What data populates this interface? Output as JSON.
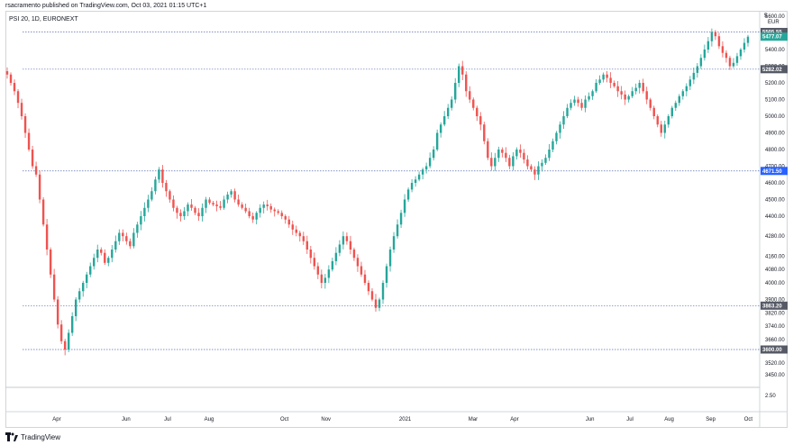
{
  "header": {
    "text": "rsacramento published on TradingView.com, Oct 03, 2021 01:15 UTC+1"
  },
  "symbol": {
    "text": "PSI 20, 1D, EURONEXT"
  },
  "footer": {
    "brand": "TradingView"
  },
  "colors": {
    "up": "#26a69a",
    "down": "#ef5350",
    "line": "#5b6fb0",
    "last": "#26a69a",
    "level_highlight": "#2962ff",
    "level_tag": "#555a66"
  },
  "chart_data": {
    "type": "candlestick",
    "title": "PSI 20, 1D, EURONEXT",
    "currency": "EUR",
    "ylim": [
      3400,
      5600
    ],
    "y_ticks": [
      "5600.00",
      "5400.00",
      "5300.00",
      "5200.00",
      "5100.00",
      "5000.00",
      "4900.00",
      "4800.00",
      "4700.00",
      "4600.00",
      "4500.00",
      "4400.00",
      "4280.00",
      "4160.00",
      "4080.00",
      "4000.00",
      "3900.00",
      "3820.00",
      "3740.00",
      "3660.00",
      "3600.00",
      "3520.00",
      "3450.00"
    ],
    "x_ticks": [
      "Apr",
      "Jun",
      "Jul",
      "Aug",
      "Oct",
      "Nov",
      "2021",
      "Mar",
      "Apr",
      "Jun",
      "Jul",
      "Aug",
      "Sep",
      "Oct"
    ],
    "levels": [
      {
        "label": "5505.55",
        "value": 5505.55
      },
      {
        "label": "5477.07",
        "value": 5477.07,
        "kind": "last"
      },
      {
        "label": "5282.02",
        "value": 5282.02
      },
      {
        "label": "4671.50",
        "value": 4671.5,
        "kind": "highlight"
      },
      {
        "label": "3863.20",
        "value": 3863.2
      },
      {
        "label": "3600.00",
        "value": 3600.0
      }
    ],
    "lower_pane_label": "2.50",
    "axis_fragment": "5",
    "closes": [
      5250,
      5200,
      5150,
      5080,
      5000,
      4900,
      4800,
      4700,
      4650,
      4500,
      4350,
      4200,
      4050,
      3900,
      3750,
      3650,
      3600,
      3700,
      3800,
      3900,
      3950,
      4000,
      4050,
      4100,
      4150,
      4200,
      4180,
      4120,
      4150,
      4200,
      4250,
      4300,
      4280,
      4250,
      4220,
      4300,
      4350,
      4400,
      4450,
      4500,
      4550,
      4620,
      4680,
      4600,
      4550,
      4500,
      4450,
      4420,
      4400,
      4430,
      4470,
      4450,
      4420,
      4400,
      4450,
      4500,
      4480,
      4470,
      4460,
      4450,
      4500,
      4530,
      4550,
      4500,
      4470,
      4450,
      4430,
      4400,
      4380,
      4420,
      4450,
      4470,
      4460,
      4440,
      4430,
      4420,
      4400,
      4380,
      4350,
      4320,
      4300,
      4280,
      4250,
      4200,
      4150,
      4100,
      4050,
      4000,
      4030,
      4080,
      4130,
      4180,
      4230,
      4280,
      4250,
      4200,
      4150,
      4100,
      4050,
      4000,
      3950,
      3900,
      3850,
      3900,
      4000,
      4100,
      4200,
      4280,
      4350,
      4420,
      4500,
      4560,
      4600,
      4620,
      4650,
      4680,
      4700,
      4750,
      4800,
      4900,
      4950,
      5000,
      5050,
      5100,
      5200,
      5300,
      5250,
      5150,
      5100,
      5050,
      5000,
      4950,
      4850,
      4750,
      4700,
      4750,
      4800,
      4780,
      4750,
      4700,
      4760,
      4800,
      4780,
      4740,
      4700,
      4680,
      4650,
      4700,
      4720,
      4750,
      4800,
      4850,
      4900,
      4950,
      5000,
      5050,
      5080,
      5100,
      5080,
      5050,
      5100,
      5120,
      5150,
      5200,
      5220,
      5250,
      5230,
      5200,
      5180,
      5150,
      5130,
      5100,
      5120,
      5150,
      5170,
      5200,
      5150,
      5100,
      5050,
      5000,
      4950,
      4900,
      4950,
      5000,
      5050,
      5080,
      5120,
      5150,
      5180,
      5220,
      5260,
      5300,
      5350,
      5400,
      5450,
      5505,
      5480,
      5420,
      5380,
      5350,
      5300,
      5320,
      5360,
      5400,
      5440,
      5477
    ]
  }
}
